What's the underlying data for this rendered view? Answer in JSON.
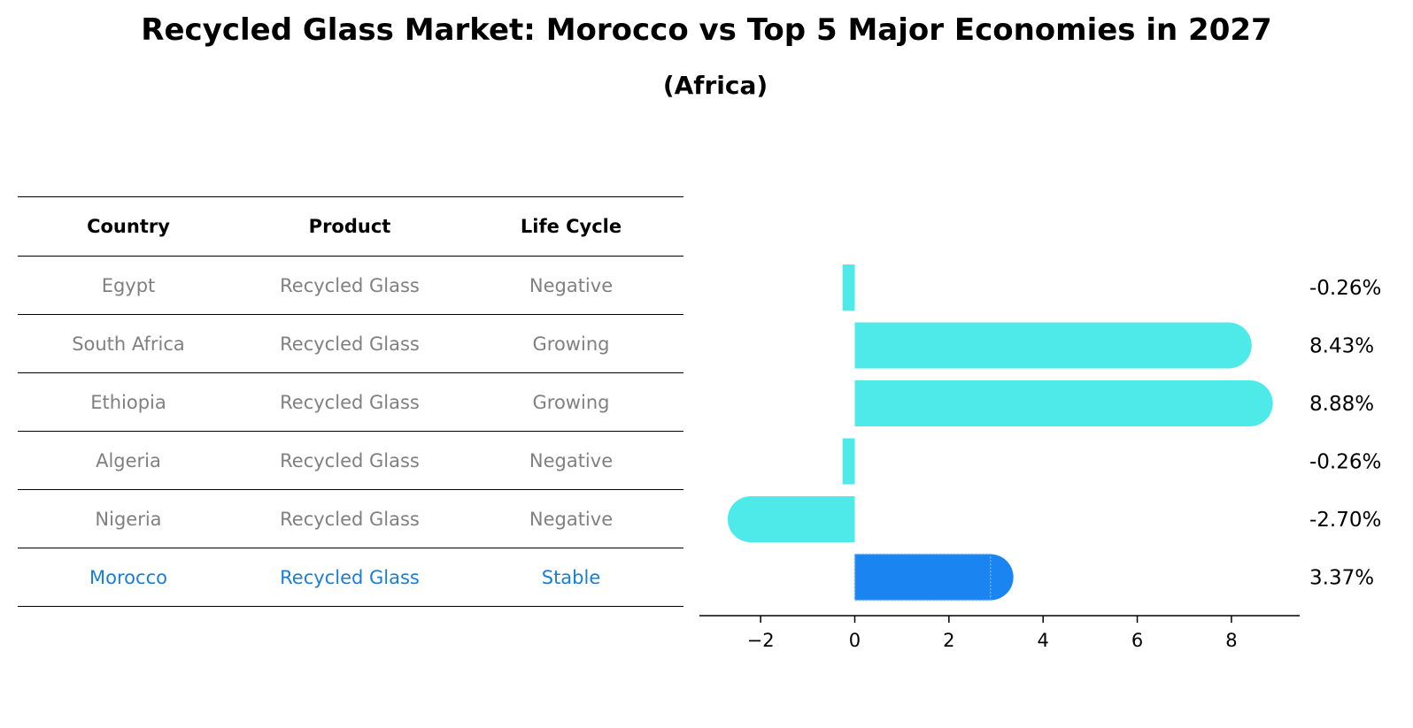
{
  "title": "Recycled Glass Market: Morocco vs Top 5 Major Economies in 2027",
  "subtitle": "(Africa)",
  "table": {
    "headers": [
      "Country",
      "Product",
      "Life Cycle"
    ],
    "rows": [
      {
        "country": "Egypt",
        "product": "Recycled Glass",
        "life_cycle": "Negative"
      },
      {
        "country": "South Africa",
        "product": "Recycled Glass",
        "life_cycle": "Growing"
      },
      {
        "country": "Ethiopia",
        "product": "Recycled Glass",
        "life_cycle": "Growing"
      },
      {
        "country": "Algeria",
        "product": "Recycled Glass",
        "life_cycle": "Negative"
      },
      {
        "country": "Nigeria",
        "product": "Recycled Glass",
        "life_cycle": "Negative"
      },
      {
        "country": "Morocco",
        "product": "Recycled Glass",
        "life_cycle": "Stable"
      }
    ]
  },
  "colors": {
    "bar": "#4eeaea",
    "highlight_bar": "#1a84f0",
    "highlight_text": "#1a7fd4",
    "muted_text": "#808080"
  },
  "chart_data": {
    "type": "bar",
    "orientation": "horizontal",
    "categories": [
      "Egypt",
      "South Africa",
      "Ethiopia",
      "Algeria",
      "Nigeria",
      "Morocco"
    ],
    "values": [
      -0.26,
      8.43,
      8.88,
      -0.26,
      -2.7,
      3.37
    ],
    "value_labels": [
      "-0.26%",
      "8.43%",
      "8.88%",
      "-0.26%",
      "-2.70%",
      "3.37%"
    ],
    "highlight": "Morocco",
    "xlim": [
      -3.3,
      9.45
    ],
    "xticks": [
      -2,
      0,
      2,
      4,
      6,
      8
    ],
    "xtick_labels": [
      "−2",
      "0",
      "2",
      "4",
      "6",
      "8"
    ],
    "grid": false
  }
}
